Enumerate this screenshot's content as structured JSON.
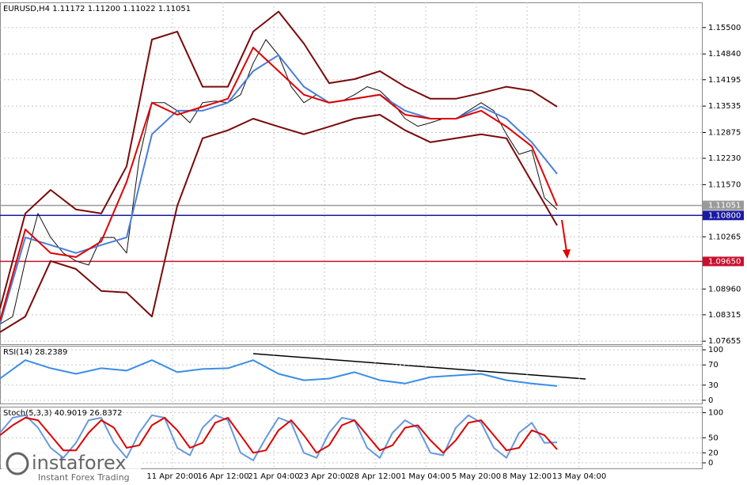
{
  "chart_data": [
    {
      "type": "line",
      "title": "EURUSD,H4  1.11172 1.11200 1.11022 1.11051",
      "xlim": [
        0,
        222
      ],
      "ylim": [
        1.0758,
        1.1613
      ],
      "grid": true,
      "yticks": [
        {
          "value": 1.155,
          "label": "1.15500"
        },
        {
          "value": 1.1484,
          "label": "1.14840"
        },
        {
          "value": 1.14195,
          "label": "1.14195"
        },
        {
          "value": 1.13535,
          "label": "1.13535"
        },
        {
          "value": 1.12875,
          "label": "1.12875"
        },
        {
          "value": 1.1223,
          "label": "1.12230"
        },
        {
          "value": 1.1157,
          "label": "1.11570"
        },
        {
          "value": 1.10265,
          "label": "1.10265"
        },
        {
          "value": 1.0896,
          "label": "1.08960"
        },
        {
          "value": 1.08315,
          "label": "1.08315"
        },
        {
          "value": 1.07655,
          "label": "1.07655"
        }
      ],
      "hlines": [
        {
          "value": 1.11051,
          "label": "1.11051",
          "color": "#9a9a9a"
        },
        {
          "value": 1.108,
          "label": "1.10800",
          "color": "#1a1aa0"
        },
        {
          "value": 1.0965,
          "label": "1.09650",
          "color": "#c8102e"
        }
      ],
      "series": [
        {
          "color": "#111111",
          "x": [
            0,
            4,
            8,
            12,
            16,
            20,
            24,
            28,
            32,
            36,
            40,
            44,
            48,
            52,
            56,
            60,
            64,
            68,
            72,
            76,
            80,
            84,
            88,
            92,
            96,
            100,
            104,
            108,
            112,
            116,
            120,
            124,
            128,
            132,
            136,
            140,
            144,
            148,
            152,
            156,
            160,
            164,
            168,
            172,
            176
          ],
          "values": [
            1.0808,
            1.0827,
            1.0966,
            1.1085,
            1.1025,
            1.0986,
            1.0966,
            1.0956,
            1.1025,
            1.1025,
            1.0986,
            1.1223,
            1.1362,
            1.1362,
            1.1342,
            1.1312,
            1.1362,
            1.1366,
            1.1362,
            1.1382,
            1.1461,
            1.152,
            1.1481,
            1.1402,
            1.1362,
            1.1382,
            1.1362,
            1.1366,
            1.1382,
            1.1402,
            1.1392,
            1.1362,
            1.1322,
            1.1303,
            1.1312,
            1.1322,
            1.1322,
            1.1342,
            1.1362,
            1.1342,
            1.1283,
            1.1233,
            1.1243,
            1.1124,
            1.1095
          ]
        },
        {
          "color": "#7a0a0a",
          "x": [
            0,
            8,
            16,
            24,
            32,
            40,
            48,
            56,
            64,
            72,
            80,
            88,
            96,
            104,
            112,
            120,
            128,
            136,
            144,
            152,
            160,
            168,
            176
          ],
          "values": [
            1.0847,
            1.1085,
            1.1144,
            1.1095,
            1.1085,
            1.1203,
            1.152,
            1.154,
            1.1402,
            1.1402,
            1.154,
            1.159,
            1.151,
            1.1411,
            1.1421,
            1.1441,
            1.1402,
            1.1372,
            1.1372,
            1.1386,
            1.1402,
            1.1392,
            1.1352
          ]
        },
        {
          "color": "#7a0a0a",
          "x": [
            0,
            8,
            16,
            24,
            32,
            40,
            48,
            56,
            64,
            72,
            80,
            88,
            96,
            104,
            112,
            120,
            128,
            136,
            144,
            152,
            160,
            168,
            176
          ],
          "values": [
            1.0788,
            1.0827,
            1.0966,
            1.0946,
            1.0891,
            1.0887,
            1.0827,
            1.1104,
            1.1273,
            1.1293,
            1.1322,
            1.1302,
            1.1283,
            1.1302,
            1.1322,
            1.1332,
            1.1293,
            1.1263,
            1.1273,
            1.1283,
            1.1273,
            1.1164,
            1.1055
          ]
        },
        {
          "color": "#4a7ed8",
          "x": [
            0,
            8,
            16,
            24,
            32,
            40,
            48,
            56,
            64,
            72,
            80,
            88,
            96,
            104,
            112,
            120,
            128,
            136,
            144,
            152,
            160,
            168,
            176
          ],
          "values": [
            1.0808,
            1.1025,
            1.1006,
            1.0986,
            1.1006,
            1.1025,
            1.1283,
            1.1342,
            1.1342,
            1.1362,
            1.1441,
            1.1481,
            1.1402,
            1.1362,
            1.1372,
            1.1382,
            1.1342,
            1.1322,
            1.1322,
            1.1352,
            1.1322,
            1.1263,
            1.1184
          ]
        },
        {
          "color": "#e00000",
          "x": [
            0,
            8,
            16,
            24,
            32,
            40,
            48,
            56,
            64,
            72,
            80,
            88,
            96,
            104,
            112,
            120,
            128,
            136,
            144,
            152,
            160,
            168,
            176
          ],
          "values": [
            1.0817,
            1.1045,
            1.0986,
            1.0976,
            1.1015,
            1.1164,
            1.1362,
            1.1332,
            1.1352,
            1.1372,
            1.15,
            1.1441,
            1.1382,
            1.1362,
            1.1372,
            1.1382,
            1.1332,
            1.1322,
            1.1322,
            1.1342,
            1.1302,
            1.1253,
            1.1104
          ]
        }
      ]
    },
    {
      "type": "line",
      "title": "RSI(14) 28.2389",
      "xlim": [
        0,
        222
      ],
      "ylim": [
        -8,
        108
      ],
      "grid": true,
      "yticks": [
        0,
        30,
        70,
        100
      ],
      "series": [
        {
          "color": "#3a8ee6",
          "x": [
            0,
            8,
            16,
            24,
            32,
            40,
            48,
            56,
            64,
            72,
            80,
            88,
            96,
            104,
            112,
            120,
            128,
            136,
            144,
            152,
            160,
            168,
            176
          ],
          "values": [
            42.9,
            79.4,
            63.5,
            52.4,
            63.5,
            58.7,
            79.4,
            55.6,
            61.9,
            63.5,
            79.4,
            52.4,
            39.7,
            42.9,
            55.6,
            39.7,
            33.3,
            46.0,
            49.2,
            52.4,
            39.7,
            33.3,
            28.2
          ]
        }
      ]
    },
    {
      "type": "line",
      "title": "Stoch(5,3,3) 40.9019 26.8372",
      "xlim": [
        0,
        222
      ],
      "ylim": [
        -11,
        112
      ],
      "grid": true,
      "yticks": [
        0,
        20,
        50,
        100
      ],
      "xticks": [
        {
          "value": 54.5,
          "label": "11 Apr 20:00"
        },
        {
          "value": 70.5,
          "label": "16 Apr 12:00"
        },
        {
          "value": 86.5,
          "label": "21 Apr 04:00"
        },
        {
          "value": 102.5,
          "label": "23 Apr 20:00"
        },
        {
          "value": 118.5,
          "label": "28 Apr 12:00"
        },
        {
          "value": 134.5,
          "label": "1 May 04:00"
        },
        {
          "value": 150.5,
          "label": "5 May 20:00"
        },
        {
          "value": 166.5,
          "label": "8 May 12:00"
        },
        {
          "value": 183,
          "label": "13 May 04:00"
        }
      ],
      "series": [
        {
          "color": "#6699dd",
          "x": [
            0,
            4,
            8,
            12,
            16,
            20,
            24,
            28,
            32,
            36,
            40,
            44,
            48,
            52,
            56,
            60,
            64,
            68,
            72,
            76,
            80,
            84,
            88,
            92,
            96,
            100,
            104,
            108,
            112,
            116,
            120,
            124,
            128,
            132,
            136,
            140,
            144,
            148,
            152,
            156,
            160,
            164,
            168,
            172,
            176
          ],
          "values": [
            60,
            90,
            95,
            70,
            30,
            10,
            40,
            85,
            90,
            40,
            10,
            60,
            95,
            90,
            30,
            15,
            70,
            95,
            85,
            20,
            5,
            50,
            90,
            80,
            20,
            10,
            60,
            90,
            85,
            30,
            10,
            60,
            85,
            70,
            20,
            15,
            70,
            95,
            80,
            30,
            10,
            60,
            80,
            40,
            40.9
          ]
        },
        {
          "color": "#dd0000",
          "x": [
            0,
            4,
            8,
            12,
            16,
            20,
            24,
            28,
            32,
            36,
            40,
            44,
            48,
            52,
            56,
            60,
            64,
            68,
            72,
            76,
            80,
            84,
            88,
            92,
            96,
            100,
            104,
            108,
            112,
            116,
            120,
            124,
            128,
            132,
            136,
            140,
            144,
            148,
            152,
            156,
            160,
            164,
            168,
            172,
            176
          ],
          "values": [
            55,
            75,
            90,
            85,
            55,
            25,
            25,
            60,
            85,
            70,
            30,
            35,
            75,
            90,
            65,
            30,
            40,
            80,
            90,
            55,
            20,
            25,
            65,
            85,
            55,
            20,
            35,
            75,
            85,
            55,
            25,
            35,
            70,
            75,
            45,
            20,
            45,
            80,
            85,
            55,
            25,
            30,
            65,
            55,
            26.8
          ]
        }
      ]
    }
  ],
  "watermark": {
    "brand": "instaforex",
    "tagline": "Instant Forex Trading"
  }
}
